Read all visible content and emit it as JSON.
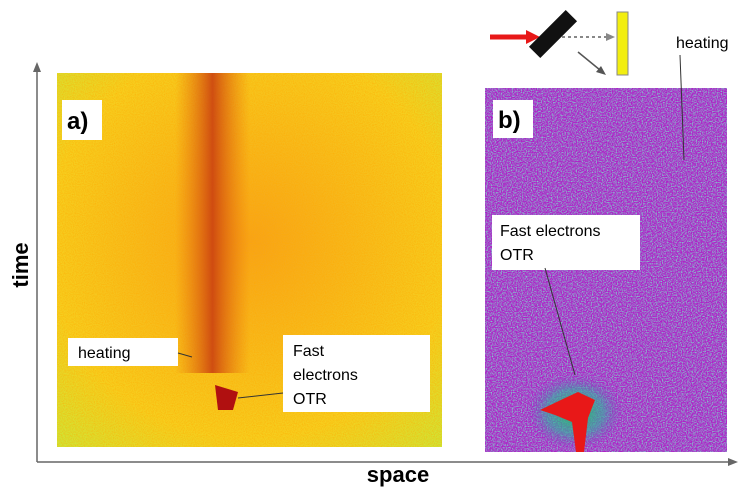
{
  "axes": {
    "y_label": "time",
    "x_label": "space"
  },
  "panels": [
    {
      "label": "a)",
      "annotations": [
        {
          "lines": [
            "heating"
          ]
        },
        {
          "lines": [
            "Fast",
            "electrons",
            "OTR"
          ]
        }
      ]
    },
    {
      "label": "b)",
      "annotations": [
        {
          "lines": [
            "heating"
          ]
        },
        {
          "lines": [
            "Fast electrons",
            "OTR"
          ]
        }
      ]
    }
  ]
}
